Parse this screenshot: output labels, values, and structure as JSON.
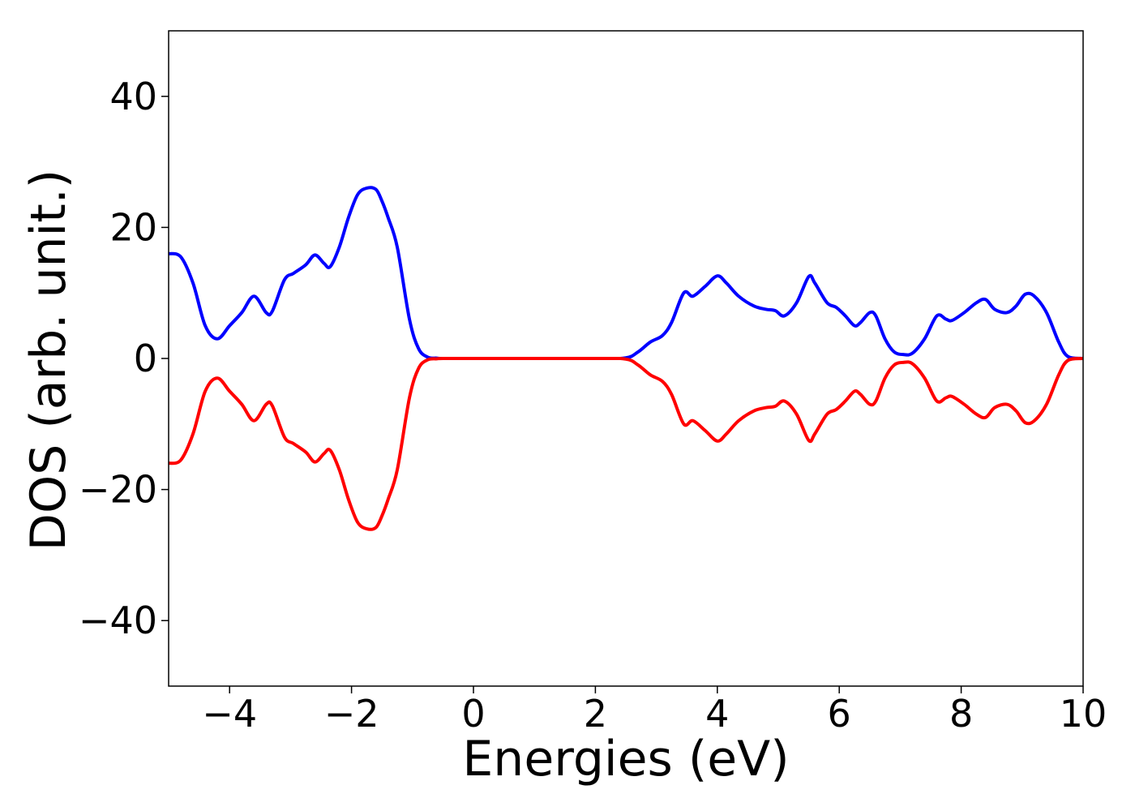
{
  "chart_data": {
    "type": "line",
    "xlabel": "Energies (eV)",
    "ylabel": "DOS (arb. unit.)",
    "xlim": [
      -5,
      10
    ],
    "ylim": [
      -50,
      50
    ],
    "x_ticks": [
      -4,
      -2,
      0,
      2,
      4,
      6,
      8,
      10
    ],
    "x_tick_labels": [
      "−4",
      "−2",
      "0",
      "2",
      "4",
      "6",
      "8",
      "10"
    ],
    "y_ticks": [
      -40,
      -20,
      0,
      20,
      40
    ],
    "y_tick_labels": [
      "−40",
      "−20",
      "0",
      "20",
      "40"
    ],
    "grid": false,
    "series": [
      {
        "color": "#0000ff",
        "x": [
          -5.0,
          -4.8,
          -4.6,
          -4.4,
          -4.2,
          -4.0,
          -3.8,
          -3.6,
          -3.4,
          -3.3,
          -3.1,
          -2.95,
          -2.75,
          -2.6,
          -2.45,
          -2.35,
          -2.2,
          -2.05,
          -1.9,
          -1.75,
          -1.6,
          -1.5,
          -1.4,
          -1.25,
          -1.05,
          -0.9,
          -0.75,
          -0.6,
          -0.5,
          0.0,
          2.0,
          2.5,
          2.7,
          2.9,
          3.1,
          3.25,
          3.45,
          3.6,
          3.8,
          4.0,
          4.15,
          4.35,
          4.6,
          4.8,
          4.95,
          5.1,
          5.3,
          5.5,
          5.6,
          5.8,
          5.95,
          6.1,
          6.25,
          6.35,
          6.5,
          6.6,
          6.75,
          6.9,
          7.05,
          7.2,
          7.4,
          7.6,
          7.75,
          7.85,
          8.05,
          8.25,
          8.4,
          8.55,
          8.75,
          8.9,
          9.05,
          9.2,
          9.4,
          9.6,
          9.75,
          10.0
        ],
        "y": [
          16,
          15.5,
          11.5,
          5,
          3,
          5,
          7,
          9.5,
          7,
          7.2,
          12,
          13,
          14.3,
          15.8,
          14.5,
          14,
          17,
          21.5,
          25,
          26,
          25.8,
          24,
          21.5,
          17,
          6,
          1.5,
          0.2,
          0.05,
          0,
          0,
          0,
          0.1,
          1,
          2.5,
          3.5,
          5.5,
          10,
          9.5,
          11,
          12.6,
          11.5,
          9.5,
          8,
          7.5,
          7.3,
          6.5,
          8.5,
          12.5,
          11.5,
          8.5,
          7.8,
          6.5,
          5,
          5.5,
          7,
          6.5,
          3,
          1,
          0.6,
          0.8,
          3,
          6.5,
          6,
          5.8,
          7,
          8.5,
          9,
          7.5,
          7,
          8,
          9.8,
          9.5,
          7,
          2.5,
          0.3,
          0
        ]
      },
      {
        "color": "#ff0000",
        "x": [
          -5.0,
          -4.8,
          -4.6,
          -4.4,
          -4.2,
          -4.0,
          -3.8,
          -3.6,
          -3.4,
          -3.3,
          -3.1,
          -2.95,
          -2.75,
          -2.6,
          -2.45,
          -2.35,
          -2.2,
          -2.05,
          -1.9,
          -1.75,
          -1.6,
          -1.5,
          -1.4,
          -1.25,
          -1.05,
          -0.9,
          -0.75,
          -0.6,
          -0.5,
          0.0,
          2.0,
          2.5,
          2.7,
          2.9,
          3.1,
          3.25,
          3.45,
          3.6,
          3.8,
          4.0,
          4.15,
          4.35,
          4.6,
          4.8,
          4.95,
          5.1,
          5.3,
          5.5,
          5.6,
          5.8,
          5.95,
          6.1,
          6.25,
          6.35,
          6.5,
          6.6,
          6.75,
          6.9,
          7.05,
          7.2,
          7.4,
          7.6,
          7.75,
          7.85,
          8.05,
          8.25,
          8.4,
          8.55,
          8.75,
          8.9,
          9.05,
          9.2,
          9.4,
          9.6,
          9.75,
          10.0
        ],
        "y": [
          -16,
          -15.5,
          -11.5,
          -5,
          -3,
          -5,
          -7,
          -9.5,
          -7,
          -7.2,
          -12,
          -13,
          -14.3,
          -15.8,
          -14.5,
          -14,
          -17,
          -21.5,
          -25,
          -26,
          -25.8,
          -24,
          -21.5,
          -17,
          -6,
          -1.5,
          -0.2,
          -0.05,
          0,
          0,
          0,
          -0.1,
          -1,
          -2.5,
          -3.5,
          -5.5,
          -10,
          -9.5,
          -11,
          -12.6,
          -11.5,
          -9.5,
          -8,
          -7.5,
          -7.3,
          -6.5,
          -8.5,
          -12.5,
          -11.5,
          -8.5,
          -7.8,
          -6.5,
          -5,
          -5.5,
          -7,
          -6.5,
          -3,
          -1,
          -0.6,
          -0.8,
          -3,
          -6.5,
          -6,
          -5.8,
          -7,
          -8.5,
          -9,
          -7.5,
          -7,
          -8,
          -9.8,
          -9.5,
          -7,
          -2.5,
          -0.3,
          0
        ]
      }
    ]
  }
}
